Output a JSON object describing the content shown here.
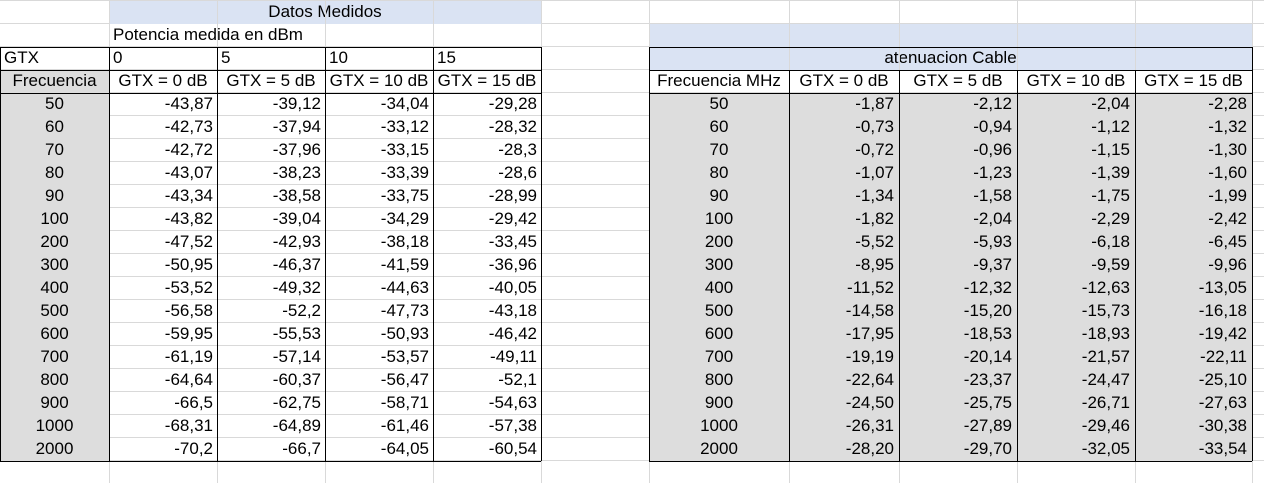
{
  "left": {
    "title": "Datos Medidos",
    "subtitle": "Potencia medida en dBm",
    "gtx_label": "GTX",
    "gtx_values": [
      "0",
      "5",
      "10",
      "15"
    ],
    "freq_label": "Frecuencia",
    "headers": [
      "GTX = 0 dB",
      "GTX = 5 dB",
      "GTX = 10 dB",
      "GTX = 15 dB"
    ],
    "rows": [
      {
        "f": "50",
        "v": [
          "-43,87",
          "-39,12",
          "-34,04",
          "-29,28"
        ]
      },
      {
        "f": "60",
        "v": [
          "-42,73",
          "-37,94",
          "-33,12",
          "-28,32"
        ]
      },
      {
        "f": "70",
        "v": [
          "-42,72",
          "-37,96",
          "-33,15",
          "-28,3"
        ]
      },
      {
        "f": "80",
        "v": [
          "-43,07",
          "-38,23",
          "-33,39",
          "-28,6"
        ]
      },
      {
        "f": "90",
        "v": [
          "-43,34",
          "-38,58",
          "-33,75",
          "-28,99"
        ]
      },
      {
        "f": "100",
        "v": [
          "-43,82",
          "-39,04",
          "-34,29",
          "-29,42"
        ]
      },
      {
        "f": "200",
        "v": [
          "-47,52",
          "-42,93",
          "-38,18",
          "-33,45"
        ]
      },
      {
        "f": "300",
        "v": [
          "-50,95",
          "-46,37",
          "-41,59",
          "-36,96"
        ]
      },
      {
        "f": "400",
        "v": [
          "-53,52",
          "-49,32",
          "-44,63",
          "-40,05"
        ]
      },
      {
        "f": "500",
        "v": [
          "-56,58",
          "-52,2",
          "-47,73",
          "-43,18"
        ]
      },
      {
        "f": "600",
        "v": [
          "-59,95",
          "-55,53",
          "-50,93",
          "-46,42"
        ]
      },
      {
        "f": "700",
        "v": [
          "-61,19",
          "-57,14",
          "-53,57",
          "-49,11"
        ]
      },
      {
        "f": "800",
        "v": [
          "-64,64",
          "-60,37",
          "-56,47",
          "-52,1"
        ]
      },
      {
        "f": "900",
        "v": [
          "-66,5",
          "-62,75",
          "-58,71",
          "-54,63"
        ]
      },
      {
        "f": "1000",
        "v": [
          "-68,31",
          "-64,89",
          "-61,46",
          "-57,38"
        ]
      },
      {
        "f": "2000",
        "v": [
          "-70,2",
          "-66,7",
          "-64,05",
          "-60,54"
        ]
      }
    ]
  },
  "right": {
    "title": "atenuacion Cable",
    "freq_label": "Frecuencia MHz",
    "headers": [
      "GTX = 0 dB",
      "GTX = 5 dB",
      "GTX = 10 dB",
      "GTX = 15 dB"
    ],
    "rows": [
      {
        "f": "50",
        "v": [
          "-1,87",
          "-2,12",
          "-2,04",
          "-2,28"
        ]
      },
      {
        "f": "60",
        "v": [
          "-0,73",
          "-0,94",
          "-1,12",
          "-1,32"
        ]
      },
      {
        "f": "70",
        "v": [
          "-0,72",
          "-0,96",
          "-1,15",
          "-1,30"
        ]
      },
      {
        "f": "80",
        "v": [
          "-1,07",
          "-1,23",
          "-1,39",
          "-1,60"
        ]
      },
      {
        "f": "90",
        "v": [
          "-1,34",
          "-1,58",
          "-1,75",
          "-1,99"
        ]
      },
      {
        "f": "100",
        "v": [
          "-1,82",
          "-2,04",
          "-2,29",
          "-2,42"
        ]
      },
      {
        "f": "200",
        "v": [
          "-5,52",
          "-5,93",
          "-6,18",
          "-6,45"
        ]
      },
      {
        "f": "300",
        "v": [
          "-8,95",
          "-9,37",
          "-9,59",
          "-9,96"
        ]
      },
      {
        "f": "400",
        "v": [
          "-11,52",
          "-12,32",
          "-12,63",
          "-13,05"
        ]
      },
      {
        "f": "500",
        "v": [
          "-14,58",
          "-15,20",
          "-15,73",
          "-16,18"
        ]
      },
      {
        "f": "600",
        "v": [
          "-17,95",
          "-18,53",
          "-18,93",
          "-19,42"
        ]
      },
      {
        "f": "700",
        "v": [
          "-19,19",
          "-20,14",
          "-21,57",
          "-22,11"
        ]
      },
      {
        "f": "800",
        "v": [
          "-22,64",
          "-23,37",
          "-24,47",
          "-25,10"
        ]
      },
      {
        "f": "900",
        "v": [
          "-24,50",
          "-25,75",
          "-26,71",
          "-27,63"
        ]
      },
      {
        "f": "1000",
        "v": [
          "-26,31",
          "-27,89",
          "-29,46",
          "-30,38"
        ]
      },
      {
        "f": "2000",
        "v": [
          "-28,20",
          "-29,70",
          "-32,05",
          "-33,54"
        ]
      }
    ]
  }
}
